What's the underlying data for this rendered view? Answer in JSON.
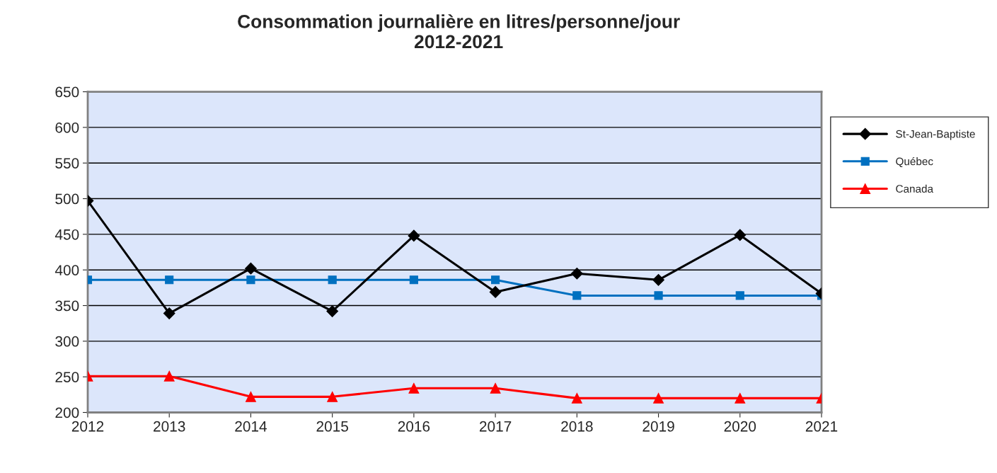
{
  "chart_data": {
    "type": "line",
    "title": "Consommation journalière en litres/personne/jour\n2012-2021",
    "x": [
      2012,
      2013,
      2014,
      2015,
      2016,
      2017,
      2018,
      2019,
      2020,
      2021
    ],
    "series": [
      {
        "name": "St-Jean-Baptiste",
        "color": "#000000",
        "marker": "diamond",
        "values": [
          497,
          339,
          402,
          342,
          448,
          369,
          395,
          386,
          449,
          367
        ]
      },
      {
        "name": "Québec",
        "color": "#0070c0",
        "marker": "square",
        "values": [
          386,
          386,
          386,
          386,
          386,
          386,
          364,
          364,
          364,
          364
        ]
      },
      {
        "name": "Canada",
        "color": "#ff0000",
        "marker": "triangle",
        "values": [
          251,
          251,
          222,
          222,
          234,
          234,
          220,
          220,
          220,
          220
        ]
      }
    ],
    "xlim": [
      2012,
      2021
    ],
    "xticks": [
      2012,
      2013,
      2014,
      2015,
      2016,
      2017,
      2018,
      2019,
      2020,
      2021
    ],
    "ylim": [
      200,
      650
    ],
    "yticks": [
      200,
      250,
      300,
      350,
      400,
      450,
      500,
      550,
      600,
      650
    ],
    "grid": "y",
    "legend": "right",
    "line_style": "solid"
  }
}
